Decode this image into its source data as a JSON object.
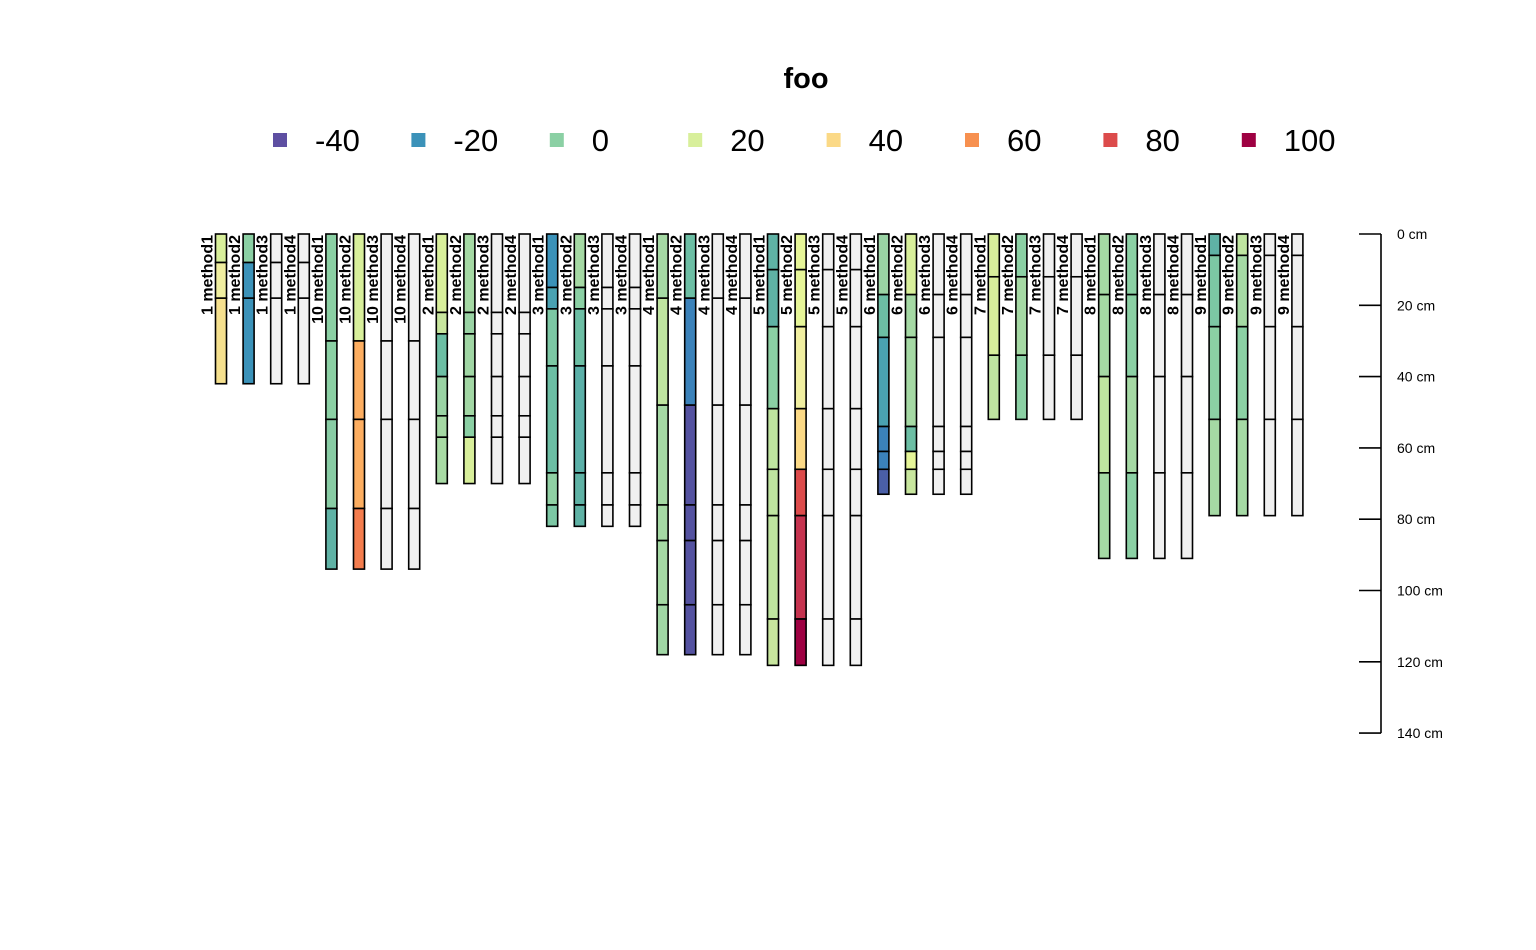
{
  "chart_data": {
    "type": "soil-profile",
    "title": "foo",
    "legend": {
      "entries": [
        {
          "label": "-40",
          "color": "#5E4FA2"
        },
        {
          "label": "-20",
          "color": "#3B92B9"
        },
        {
          "label": "0",
          "color": "#8BD0A4"
        },
        {
          "label": "20",
          "color": "#D8EF9B"
        },
        {
          "label": "40",
          "color": "#FBD986"
        },
        {
          "label": "60",
          "color": "#F7904F"
        },
        {
          "label": "80",
          "color": "#DC4B4B"
        },
        {
          "label": "100",
          "color": "#9E0142"
        }
      ],
      "placement": "top"
    },
    "depth_axis": {
      "ticks": [
        {
          "value": 0,
          "label": "0 cm"
        },
        {
          "value": 20,
          "label": "20 cm"
        },
        {
          "value": 40,
          "label": "40 cm"
        },
        {
          "value": 60,
          "label": "60 cm"
        },
        {
          "value": 80,
          "label": "80 cm"
        },
        {
          "value": 100,
          "label": "100 cm"
        },
        {
          "value": 120,
          "label": "120 cm"
        },
        {
          "value": 140,
          "label": "140 cm"
        }
      ],
      "range": [
        0,
        140
      ],
      "placement": "right"
    },
    "na_color": "#F0F0F0",
    "groups": [
      {
        "id": "1",
        "depths": [
          0,
          8,
          18,
          42
        ],
        "methods": [
          {
            "name": "method1",
            "colors": [
              "#D8EF9B",
              "#F0EEA0",
              "#F5E08E"
            ]
          },
          {
            "name": "method2",
            "colors": [
              "#8BD0A4",
              "#3B92B9",
              "#3B92B9"
            ]
          },
          {
            "name": "method3",
            "colors": [
              "#F0F0F0",
              "#F0F0F0",
              "#F0F0F0"
            ]
          },
          {
            "name": "method4",
            "colors": [
              "#F0F0F0",
              "#F0F0F0",
              "#F0F0F0"
            ]
          }
        ]
      },
      {
        "id": "10",
        "depths": [
          0,
          30,
          52,
          77,
          94
        ],
        "methods": [
          {
            "name": "method1",
            "colors": [
              "#8BD0A4",
              "#8BD0A4",
              "#88CCA4",
              "#5FB2A5"
            ]
          },
          {
            "name": "method2",
            "colors": [
              "#D8EF9B",
              "#FDAE61",
              "#FDAE61",
              "#F47D4E"
            ]
          },
          {
            "name": "method3",
            "colors": [
              "#F0F0F0",
              "#F0F0F0",
              "#F0F0F0",
              "#F0F0F0"
            ]
          },
          {
            "name": "method4",
            "colors": [
              "#F0F0F0",
              "#F0F0F0",
              "#F0F0F0",
              "#F0F0F0"
            ]
          }
        ]
      },
      {
        "id": "2",
        "depths": [
          0,
          22,
          28,
          40,
          51,
          57,
          70
        ],
        "methods": [
          {
            "name": "method1",
            "colors": [
              "#D8EF9B",
              "#C8E69E",
              "#6CBEA4",
              "#9AD3A4",
              "#A5D9A4",
              "#A8DAA4"
            ]
          },
          {
            "name": "method2",
            "colors": [
              "#A5D9A4",
              "#9AD3A4",
              "#A0D6A4",
              "#A2D7A4",
              "#8BD0A4",
              "#D8EF9B"
            ]
          },
          {
            "name": "method3",
            "colors": [
              "#F0F0F0",
              "#F0F0F0",
              "#F0F0F0",
              "#F0F0F0",
              "#F0F0F0",
              "#F0F0F0"
            ]
          },
          {
            "name": "method4",
            "colors": [
              "#F0F0F0",
              "#F0F0F0",
              "#F0F0F0",
              "#F0F0F0",
              "#F0F0F0",
              "#F0F0F0"
            ]
          }
        ]
      },
      {
        "id": "3",
        "depths": [
          0,
          15,
          21,
          37,
          67,
          76,
          82
        ],
        "methods": [
          {
            "name": "method1",
            "colors": [
              "#3B92B9",
              "#4AA2B2",
              "#7CC7A4",
              "#6CBEA4",
              "#90D0A4",
              "#7CC7A4"
            ]
          },
          {
            "name": "method2",
            "colors": [
              "#A5D9A4",
              "#8BD0A4",
              "#6CBEA4",
              "#5BB0A8",
              "#5FB2A5",
              "#5FB2A5"
            ]
          },
          {
            "name": "method3",
            "colors": [
              "#F0F0F0",
              "#F0F0F0",
              "#F0F0F0",
              "#F0F0F0",
              "#F0F0F0",
              "#F0F0F0"
            ]
          },
          {
            "name": "method4",
            "colors": [
              "#F0F0F0",
              "#F0F0F0",
              "#F0F0F0",
              "#F0F0F0",
              "#F0F0F0",
              "#F0F0F0"
            ]
          }
        ]
      },
      {
        "id": "4",
        "depths": [
          0,
          18,
          48,
          76,
          86,
          104,
          118
        ],
        "methods": [
          {
            "name": "method1",
            "colors": [
              "#A5D9A4",
              "#BFE5A0",
              "#A5D9A4",
              "#A5D9A4",
              "#A5D9A4",
              "#A0D6A4"
            ]
          },
          {
            "name": "method2",
            "colors": [
              "#6CBEA4",
              "#3B82BA",
              "#5452A0",
              "#5452A0",
              "#5452A0",
              "#5452A0"
            ]
          },
          {
            "name": "method3",
            "colors": [
              "#F0F0F0",
              "#F0F0F0",
              "#F0F0F0",
              "#F0F0F0",
              "#F0F0F0",
              "#F0F0F0"
            ]
          },
          {
            "name": "method4",
            "colors": [
              "#F0F0F0",
              "#F0F0F0",
              "#F0F0F0",
              "#F0F0F0",
              "#F0F0F0",
              "#F0F0F0"
            ]
          }
        ]
      },
      {
        "id": "5",
        "depths": [
          0,
          10,
          26,
          49,
          66,
          79,
          108,
          121
        ],
        "methods": [
          {
            "name": "method1",
            "colors": [
              "#5FB2A5",
              "#5FB2A5",
              "#8BD0A4",
              "#BFE5A0",
              "#BFE5A0",
              "#BFE5A0",
              "#C8E69E"
            ]
          },
          {
            "name": "method2",
            "colors": [
              "#E6F598",
              "#E6F598",
              "#F0EEA0",
              "#FBD986",
              "#DC4B4B",
              "#C5334F",
              "#9E0142"
            ]
          },
          {
            "name": "method3",
            "colors": [
              "#F0F0F0",
              "#F0F0F0",
              "#F0F0F0",
              "#F0F0F0",
              "#F0F0F0",
              "#F0F0F0",
              "#F0F0F0"
            ]
          },
          {
            "name": "method4",
            "colors": [
              "#F0F0F0",
              "#F0F0F0",
              "#F0F0F0",
              "#F0F0F0",
              "#F0F0F0",
              "#F0F0F0",
              "#F0F0F0"
            ]
          }
        ]
      },
      {
        "id": "6",
        "depths": [
          0,
          17,
          29,
          54,
          61,
          66,
          73
        ],
        "methods": [
          {
            "name": "method1",
            "colors": [
              "#9AD3A4",
              "#6CBEA4",
              "#4AA2B2",
              "#3B82BA",
              "#3B82BA",
              "#4A5FA7"
            ]
          },
          {
            "name": "method2",
            "colors": [
              "#D8EF9B",
              "#A5D9A4",
              "#A5D9A4",
              "#6CBEA4",
              "#E6F598",
              "#C8E69E"
            ]
          },
          {
            "name": "method3",
            "colors": [
              "#F0F0F0",
              "#F0F0F0",
              "#F0F0F0",
              "#F0F0F0",
              "#F0F0F0",
              "#F0F0F0"
            ]
          },
          {
            "name": "method4",
            "colors": [
              "#F0F0F0",
              "#F0F0F0",
              "#F0F0F0",
              "#F0F0F0",
              "#F0F0F0",
              "#F0F0F0"
            ]
          }
        ]
      },
      {
        "id": "7",
        "depths": [
          0,
          12,
          34,
          52
        ],
        "methods": [
          {
            "name": "method1",
            "colors": [
              "#D8EF9B",
              "#D8EF9B",
              "#BFE5A0"
            ]
          },
          {
            "name": "method2",
            "colors": [
              "#8BD0A4",
              "#A5D9A4",
              "#8BD0A4"
            ]
          },
          {
            "name": "method3",
            "colors": [
              "#F0F0F0",
              "#F0F0F0",
              "#F0F0F0"
            ]
          },
          {
            "name": "method4",
            "colors": [
              "#F0F0F0",
              "#F0F0F0",
              "#F0F0F0"
            ]
          }
        ]
      },
      {
        "id": "8",
        "depths": [
          0,
          17,
          40,
          67,
          91
        ],
        "methods": [
          {
            "name": "method1",
            "colors": [
              "#A5D9A4",
              "#A5D9A4",
              "#BFE5A0",
              "#A5D9A4"
            ]
          },
          {
            "name": "method2",
            "colors": [
              "#8BD0A4",
              "#8BD0A4",
              "#A5D9A4",
              "#8BD0A4"
            ]
          },
          {
            "name": "method3",
            "colors": [
              "#F0F0F0",
              "#F0F0F0",
              "#F0F0F0",
              "#F0F0F0"
            ]
          },
          {
            "name": "method4",
            "colors": [
              "#F0F0F0",
              "#F0F0F0",
              "#F0F0F0",
              "#F0F0F0"
            ]
          }
        ]
      },
      {
        "id": "9",
        "depths": [
          0,
          6,
          26,
          52,
          79
        ],
        "methods": [
          {
            "name": "method1",
            "colors": [
              "#5FB2A5",
              "#7CC7A4",
              "#8BD0A4",
              "#A5D9A4"
            ]
          },
          {
            "name": "method2",
            "colors": [
              "#BFE5A0",
              "#A5D9A4",
              "#8BD0A4",
              "#A5D9A4"
            ]
          },
          {
            "name": "method3",
            "colors": [
              "#F0F0F0",
              "#F0F0F0",
              "#F0F0F0",
              "#F0F0F0"
            ]
          },
          {
            "name": "method4",
            "colors": [
              "#F0F0F0",
              "#F0F0F0",
              "#F0F0F0",
              "#F0F0F0"
            ]
          }
        ]
      }
    ]
  }
}
